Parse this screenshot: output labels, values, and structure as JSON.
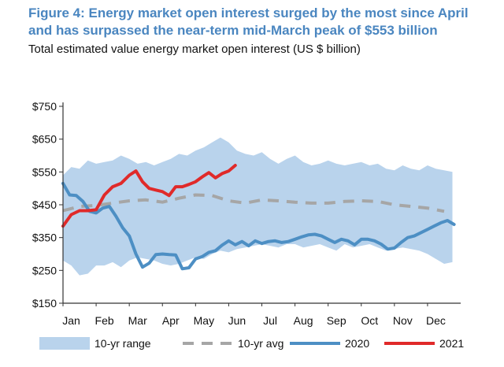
{
  "chart_data": {
    "type": "line",
    "title": "Figure 4: Energy market open interest surged by the most since April and has surpassed the near-term mid-March peak of $553 billion",
    "title_lines": [
      "Figure 4: Energy market open interest surged by the most since April",
      "and has surpassed the near-term mid-March peak of $553 billion"
    ],
    "subtitle": "Total estimated value energy market open interest (US $ billion)",
    "xlabel": "",
    "ylabel": "",
    "categories": [
      "Jan",
      "Feb",
      "Mar",
      "Apr",
      "May",
      "Jun",
      "Jul",
      "Aug",
      "Sep",
      "Oct",
      "Nov",
      "Dec"
    ],
    "y_ticks": [
      "$750",
      "$650",
      "$550",
      "$450",
      "$350",
      "$250",
      "$150"
    ],
    "y_tick_values": [
      750,
      650,
      550,
      450,
      350,
      250,
      150
    ],
    "ylim": [
      150,
      750
    ],
    "xlim": [
      0,
      12
    ],
    "grid": false,
    "legend_position": "bottom",
    "range_band": {
      "name": "10-yr range",
      "color": "#b9d3ec",
      "x": [
        0,
        0.25,
        0.5,
        0.75,
        1.0,
        1.25,
        1.5,
        1.75,
        2.0,
        2.25,
        2.5,
        2.75,
        3.0,
        3.25,
        3.5,
        3.75,
        4.0,
        4.25,
        4.5,
        4.75,
        5.0,
        5.25,
        5.5,
        5.75,
        6.0,
        6.25,
        6.5,
        6.75,
        7.0,
        7.25,
        7.5,
        7.75,
        8.0,
        8.25,
        8.5,
        8.75,
        9.0,
        9.25,
        9.5,
        9.75,
        10.0,
        10.25,
        10.5,
        10.75,
        11.0,
        11.25,
        11.5,
        11.75
      ],
      "high": [
        540,
        565,
        560,
        585,
        575,
        580,
        585,
        600,
        590,
        575,
        580,
        570,
        580,
        590,
        605,
        600,
        615,
        625,
        640,
        655,
        640,
        615,
        605,
        600,
        610,
        590,
        575,
        590,
        600,
        580,
        570,
        575,
        585,
        575,
        570,
        575,
        580,
        570,
        575,
        560,
        555,
        570,
        560,
        555,
        570,
        560,
        555,
        550
      ],
      "low": [
        280,
        265,
        235,
        240,
        265,
        265,
        275,
        260,
        280,
        290,
        285,
        280,
        270,
        265,
        270,
        280,
        290,
        285,
        300,
        310,
        305,
        315,
        320,
        325,
        330,
        325,
        320,
        330,
        330,
        320,
        325,
        330,
        320,
        310,
        330,
        320,
        325,
        330,
        320,
        310,
        315,
        320,
        315,
        310,
        300,
        285,
        270,
        275
      ]
    },
    "series": [
      {
        "name": "10-yr avg",
        "color": "#a6a6a6",
        "dashed": true,
        "x": [
          0,
          0.5,
          1.0,
          1.5,
          2.0,
          2.5,
          3.0,
          3.5,
          4.0,
          4.5,
          5.0,
          5.5,
          6.0,
          6.5,
          7.0,
          7.5,
          8.0,
          8.5,
          9.0,
          9.5,
          10.0,
          10.5,
          11.0,
          11.5
        ],
        "values": [
          432,
          445,
          448,
          455,
          462,
          465,
          458,
          470,
          480,
          478,
          462,
          455,
          465,
          462,
          458,
          455,
          455,
          460,
          462,
          460,
          450,
          445,
          440,
          430
        ]
      },
      {
        "name": "2020",
        "color": "#4d8fc4",
        "dashed": false,
        "x": [
          0,
          0.2,
          0.4,
          0.6,
          0.8,
          1.0,
          1.2,
          1.4,
          1.6,
          1.8,
          2.0,
          2.2,
          2.4,
          2.6,
          2.8,
          3.0,
          3.2,
          3.4,
          3.6,
          3.8,
          4.0,
          4.2,
          4.4,
          4.6,
          4.8,
          5.0,
          5.2,
          5.4,
          5.6,
          5.8,
          6.0,
          6.2,
          6.4,
          6.6,
          6.8,
          7.0,
          7.2,
          7.4,
          7.6,
          7.8,
          8.0,
          8.2,
          8.4,
          8.6,
          8.8,
          9.0,
          9.2,
          9.4,
          9.6,
          9.8,
          10.0,
          10.2,
          10.4,
          10.6,
          10.8,
          11.0,
          11.2,
          11.4,
          11.6,
          11.8
        ],
        "values": [
          515,
          480,
          478,
          460,
          430,
          425,
          440,
          445,
          415,
          380,
          355,
          300,
          260,
          272,
          298,
          300,
          298,
          297,
          255,
          258,
          285,
          292,
          305,
          310,
          327,
          340,
          328,
          338,
          325,
          340,
          332,
          338,
          340,
          335,
          338,
          345,
          352,
          358,
          360,
          355,
          345,
          335,
          345,
          340,
          328,
          345,
          345,
          340,
          330,
          315,
          318,
          335,
          350,
          355,
          365,
          375,
          385,
          395,
          402,
          390
        ]
      },
      {
        "name": "2021",
        "color": "#e02a2a",
        "dashed": false,
        "x": [
          0,
          0.25,
          0.5,
          0.75,
          1.0,
          1.25,
          1.5,
          1.75,
          2.0,
          2.2,
          2.4,
          2.6,
          2.8,
          3.0,
          3.2,
          3.4,
          3.6,
          3.8,
          4.0,
          4.2,
          4.4,
          4.6,
          4.8,
          5.0,
          5.2
        ],
        "values": [
          385,
          420,
          432,
          432,
          435,
          480,
          505,
          515,
          540,
          553,
          520,
          500,
          495,
          490,
          478,
          505,
          505,
          512,
          520,
          535,
          548,
          532,
          545,
          553,
          570
        ]
      }
    ],
    "legend": [
      {
        "label": "10-yr range",
        "kind": "band",
        "color": "#b9d3ec"
      },
      {
        "label": "10-yr avg",
        "kind": "dashed",
        "color": "#a6a6a6"
      },
      {
        "label": "2020",
        "kind": "line",
        "color": "#4d8fc4"
      },
      {
        "label": "2021",
        "kind": "line",
        "color": "#e02a2a"
      }
    ]
  }
}
